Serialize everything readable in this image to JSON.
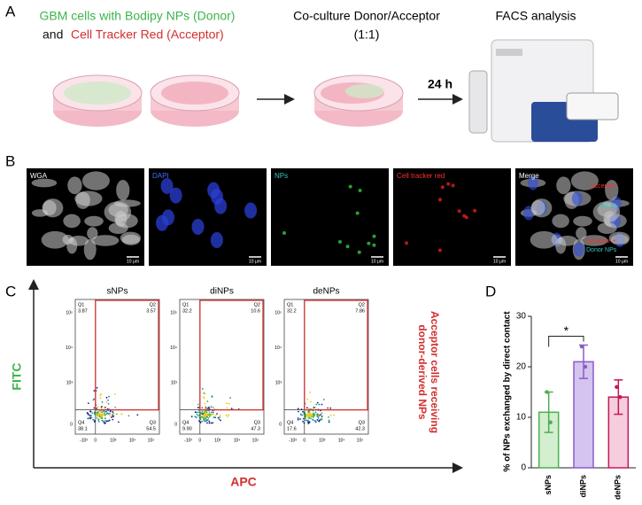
{
  "panel_a": {
    "label": "A",
    "donor_text": "GBM cells with Bodipy NPs (Donor)",
    "and_text": "and",
    "acceptor_text": "Cell Tracker Red (Acceptor)",
    "coculture_line1": "Co-culture Donor/Acceptor",
    "coculture_line2": "(1:1)",
    "facs_text": "FACS analysis",
    "time_text": "24 h"
  },
  "panel_b": {
    "label": "B",
    "images": [
      "WGA",
      "DAPI",
      "NPs",
      "Cell tracker red",
      "Merge"
    ],
    "merge_labels": [
      "Acceptor",
      "Donor",
      "Acceptor +",
      "Donor NPs"
    ],
    "scale_bar": "10 μm"
  },
  "panel_c": {
    "label": "C",
    "y_axis_label": "FITC",
    "x_axis_label": "APC",
    "side_label_line1": "Acceptor cells receiving",
    "side_label_line2": "donor-derived NPs",
    "y_tick_labels": [
      "10⁵",
      "10⁴",
      "10³",
      "0"
    ],
    "x_tick_labels": [
      "-10³",
      "0",
      "10³",
      "10⁴",
      "10⁵"
    ],
    "plots": [
      {
        "title": "sNPs",
        "quadrants": [
          {
            "name": "Q1",
            "value": "3.87"
          },
          {
            "name": "Q2",
            "value": "3.57"
          },
          {
            "name": "Q4",
            "value": "38.1"
          },
          {
            "name": "Q3",
            "value": "54.5"
          }
        ]
      },
      {
        "title": "diNPs",
        "quadrants": [
          {
            "name": "Q1",
            "value": "32.2"
          },
          {
            "name": "Q2",
            "value": "10.6"
          },
          {
            "name": "Q4",
            "value": "9.90"
          },
          {
            "name": "Q3",
            "value": "47.3"
          }
        ]
      },
      {
        "title": "deNPs",
        "quadrants": [
          {
            "name": "Q1",
            "value": "32.2"
          },
          {
            "name": "Q2",
            "value": "7.86"
          },
          {
            "name": "Q4",
            "value": "17.6"
          },
          {
            "name": "Q3",
            "value": "42.3"
          }
        ]
      }
    ]
  },
  "panel_d_label": "D",
  "chart_data": {
    "type": "bar",
    "y_axis_label": "% of NPs exchanged by direct contact",
    "categories": [
      "sNPs",
      "diNPs",
      "deNPs"
    ],
    "values": [
      11,
      21,
      14
    ],
    "errors": [
      4,
      3.3,
      3.4
    ],
    "points": [
      [
        15,
        9
      ],
      [
        24,
        20
      ],
      [
        16,
        14
      ]
    ],
    "colors": [
      "#4caf50",
      "#8a5cc8",
      "#c2185b"
    ],
    "fills": [
      "#d3efcf",
      "#d4c4ef",
      "#f6cddc"
    ],
    "annotation": "*",
    "ylim": [
      0,
      30
    ],
    "yticks": [
      0,
      10,
      20,
      30
    ]
  }
}
